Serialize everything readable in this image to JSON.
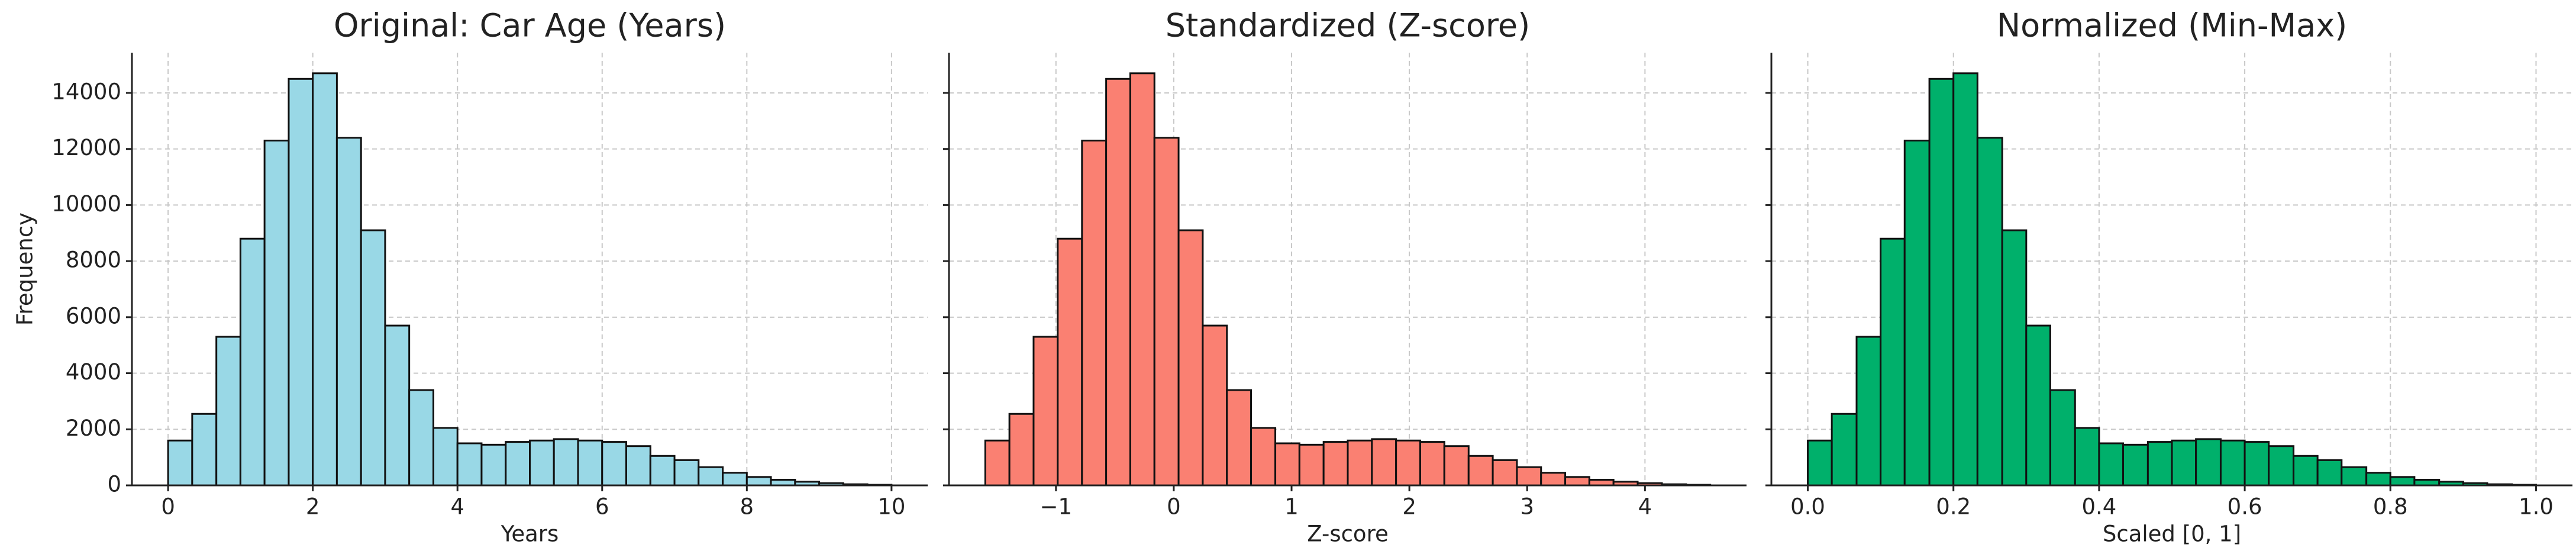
{
  "chart_data": [
    {
      "type": "histogram",
      "title": "Original: Car Age (Years)",
      "xlabel": "Years",
      "ylabel": "Frequency",
      "color": "#99d8e6",
      "grid": true,
      "bins": [
        0,
        0.333,
        0.667,
        1,
        1.333,
        1.667,
        2,
        2.333,
        2.667,
        3,
        3.333,
        3.667,
        4,
        4.333,
        4.667,
        5,
        5.333,
        5.667,
        6,
        6.333,
        6.667,
        7,
        7.333,
        7.667,
        8,
        8.333,
        8.667,
        9,
        9.333,
        9.667,
        10
      ],
      "values": [
        1600,
        2550,
        5300,
        8800,
        12300,
        14500,
        14700,
        12400,
        9100,
        5700,
        3400,
        2050,
        1500,
        1450,
        1550,
        1600,
        1650,
        1600,
        1550,
        1400,
        1050,
        900,
        650,
        450,
        300,
        200,
        130,
        80,
        40,
        20
      ],
      "xlim": [
        -0.5,
        10.5
      ],
      "xticks": [
        0,
        2,
        4,
        6,
        8,
        10
      ],
      "ylim": [
        0,
        15435
      ],
      "yticks": [
        0,
        2000,
        4000,
        6000,
        8000,
        10000,
        12000,
        14000
      ]
    },
    {
      "type": "histogram",
      "title": "Standardized (Z-score)",
      "xlabel": "Z-score",
      "color": "#fa8072",
      "grid": true,
      "bins": [
        -1.6,
        -1.395,
        -1.19,
        -0.985,
        -0.779,
        -0.574,
        -0.369,
        -0.164,
        0.041,
        0.246,
        0.451,
        0.656,
        0.862,
        1.067,
        1.272,
        1.477,
        1.682,
        1.887,
        2.092,
        2.297,
        2.503,
        2.708,
        2.913,
        3.118,
        3.323,
        3.528,
        3.733,
        3.938,
        4.144,
        4.349,
        4.554
      ],
      "values": [
        1600,
        2550,
        5300,
        8800,
        12300,
        14500,
        14700,
        12400,
        9100,
        5700,
        3400,
        2050,
        1500,
        1450,
        1550,
        1600,
        1650,
        1600,
        1550,
        1400,
        1050,
        900,
        650,
        450,
        300,
        200,
        130,
        80,
        40,
        20
      ],
      "xlim": [
        -1.908,
        4.862
      ],
      "xticks": [
        {
          "value": -1,
          "label": "−1"
        },
        0,
        1,
        2,
        3,
        4
      ]
    },
    {
      "type": "histogram",
      "title": "Normalized (Min-Max)",
      "xlabel": "Scaled [0, 1]",
      "color": "#00b06b",
      "grid": true,
      "bins": [
        0,
        0.033,
        0.067,
        0.1,
        0.133,
        0.167,
        0.2,
        0.233,
        0.267,
        0.3,
        0.333,
        0.367,
        0.4,
        0.433,
        0.467,
        0.5,
        0.533,
        0.567,
        0.6,
        0.633,
        0.667,
        0.7,
        0.733,
        0.767,
        0.8,
        0.833,
        0.867,
        0.9,
        0.933,
        0.967,
        1
      ],
      "values": [
        1600,
        2550,
        5300,
        8800,
        12300,
        14500,
        14700,
        12400,
        9100,
        5700,
        3400,
        2050,
        1500,
        1450,
        1550,
        1600,
        1650,
        1600,
        1550,
        1400,
        1050,
        900,
        650,
        450,
        300,
        200,
        130,
        80,
        40,
        20
      ],
      "xlim": [
        -0.05,
        1.05
      ],
      "xticks": [
        {
          "value": 0,
          "label": "0.0"
        },
        0.2,
        0.4,
        0.6,
        0.8,
        {
          "value": 1,
          "label": "1.0"
        }
      ]
    }
  ]
}
